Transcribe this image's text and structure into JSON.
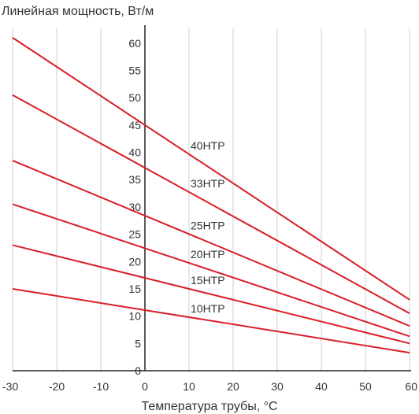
{
  "chart_data": {
    "type": "line",
    "title": "",
    "ylabel": "Линейная мощность, Вт/м",
    "xlabel": "Температура трубы, °C",
    "xlim": [
      -30,
      60
    ],
    "ylim": [
      0,
      63
    ],
    "xticks": [
      "-30",
      "-20",
      "-10",
      "0",
      "10",
      "20",
      "30",
      "40",
      "50",
      "60"
    ],
    "xtick_values": [
      -30,
      -20,
      -10,
      0,
      10,
      20,
      30,
      40,
      50,
      60
    ],
    "yticks": [
      "0",
      "5",
      "10",
      "15",
      "20",
      "25",
      "30",
      "35",
      "40",
      "45",
      "50",
      "55",
      "60"
    ],
    "ytick_values": [
      0,
      5,
      10,
      15,
      20,
      25,
      30,
      35,
      40,
      45,
      50,
      55,
      60
    ],
    "grid": "vertical",
    "line_color": "#d81e28",
    "series": [
      {
        "name": "40НТР",
        "x": [
          -30,
          60
        ],
        "y": [
          61,
          13
        ]
      },
      {
        "name": "33НТР",
        "x": [
          -30,
          60
        ],
        "y": [
          50.5,
          10.5
        ]
      },
      {
        "name": "25НТР",
        "x": [
          -30,
          60
        ],
        "y": [
          38.5,
          8.2
        ]
      },
      {
        "name": "20НТР",
        "x": [
          -30,
          60
        ],
        "y": [
          30.5,
          6.3
        ]
      },
      {
        "name": "15НТР",
        "x": [
          -30,
          60
        ],
        "y": [
          23,
          5
        ]
      },
      {
        "name": "10НТР",
        "x": [
          -30,
          60
        ],
        "y": [
          15,
          3.3
        ]
      }
    ]
  }
}
